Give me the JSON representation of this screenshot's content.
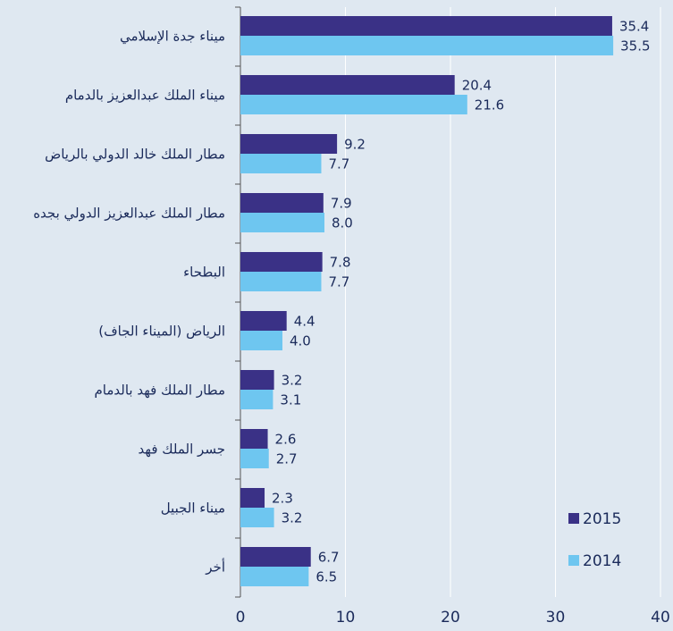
{
  "chart_data": {
    "type": "hbar",
    "categories": [
      "ميناء جدة الإسلامي",
      "ميناء الملك عبدالعزيز بالدمام",
      "مطار الملك خالد الدولي بالرياض",
      "مطار الملك عبدالعزيز الدولي بجده",
      "البطحاء",
      "الرياض (الميناء الجاف)",
      "مطار الملك فهد بالدمام",
      "جسر الملك فهد",
      "ميناء الجبيل",
      "أخر"
    ],
    "series": [
      {
        "name": "2015",
        "color": "#3a3186",
        "values": [
          35.4,
          20.4,
          9.2,
          7.9,
          7.8,
          4.4,
          3.2,
          2.6,
          2.3,
          6.7
        ],
        "value_labels": [
          "35.4",
          "20.4",
          "9.2",
          "7.9",
          "7.8",
          "4.4",
          "3.2",
          "2.6",
          "2.3",
          "6.7"
        ]
      },
      {
        "name": "2014",
        "color": "#6ec6f0",
        "values": [
          35.5,
          21.6,
          7.7,
          8,
          7.7,
          4,
          3.1,
          2.7,
          3.2,
          6.5
        ],
        "value_labels": [
          "35.5",
          "21.6",
          "7.7",
          "8.0",
          "7.7",
          "4.0",
          "3.1",
          "2.7",
          "3.2",
          "6.5"
        ]
      }
    ],
    "xlim": [
      0,
      40
    ],
    "xticks": [
      0,
      10,
      20,
      30,
      40
    ],
    "grid": true,
    "legend": "lower right"
  }
}
